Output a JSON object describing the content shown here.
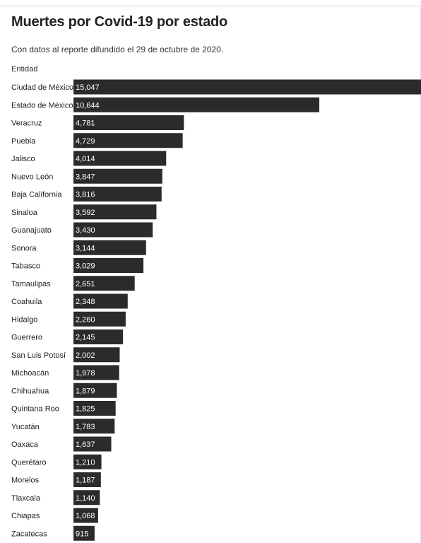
{
  "chart_data": {
    "type": "bar",
    "orientation": "horizontal",
    "title": "Muertes por Covid-19 por estado",
    "subtitle": "Con datos al reporte difundido el 29 de octubre de 2020.",
    "ylabel": "Entidad",
    "bar_color": "#2b2b2b",
    "label_color": "#ffffff",
    "xlim": [
      0,
      15047
    ],
    "categories": [
      "Ciudad de México",
      "Estado de México",
      "Veracruz",
      "Puebla",
      "Jalisco",
      "Nuevo León",
      "Baja California",
      "Sinaloa",
      "Guanajuato",
      "Sonora",
      "Tabasco",
      "Tamaulipas",
      "Coahuila",
      "Hidalgo",
      "Guerrero",
      "San Luis Potosí",
      "Michoacán",
      "Chihuahua",
      "Quintana Roo",
      "Yucatán",
      "Oaxaca",
      "Querétaro",
      "Morelos",
      "Tlaxcala",
      "Chiapas",
      "Zacatecas"
    ],
    "values": [
      15047,
      10644,
      4781,
      4729,
      4014,
      3847,
      3816,
      3592,
      3430,
      3144,
      3029,
      2651,
      2348,
      2260,
      2145,
      2002,
      1978,
      1879,
      1825,
      1783,
      1637,
      1210,
      1187,
      1140,
      1068,
      915
    ],
    "value_labels": [
      "15,047",
      "10,644",
      "4,781",
      "4,729",
      "4,014",
      "3,847",
      "3,816",
      "3,592",
      "3,430",
      "3,144",
      "3,029",
      "2,651",
      "2,348",
      "2,260",
      "2,145",
      "2,002",
      "1,978",
      "1,879",
      "1,825",
      "1,783",
      "1,637",
      "1,210",
      "1,187",
      "1,140",
      "1,068",
      "915"
    ]
  }
}
